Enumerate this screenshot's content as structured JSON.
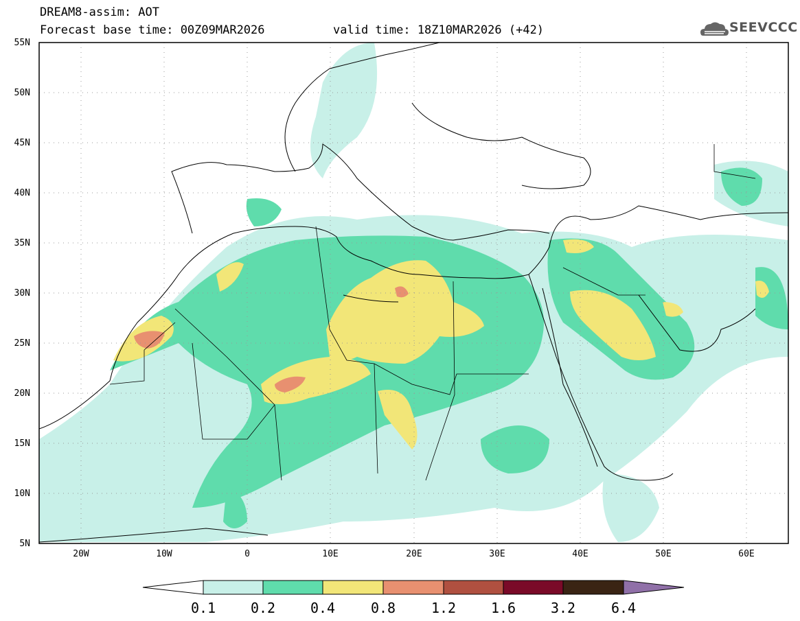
{
  "header": {
    "title": "DREAM8-assim: AOT",
    "base_time": "Forecast base time: 00Z09MAR2026",
    "valid_time": "valid time: 18Z10MAR2026 (+42)",
    "logo_text": "SEEVCCC",
    "logo_icon": "cloud-icon"
  },
  "map": {
    "projection": "lat-lon",
    "lon_range": [
      -25,
      65
    ],
    "lat_range": [
      5,
      55
    ],
    "gridlines": "dotted",
    "lat_labels": [
      "55N",
      "50N",
      "45N",
      "40N",
      "35N",
      "30N",
      "25N",
      "20N",
      "15N",
      "10N",
      "5N"
    ],
    "lon_labels": [
      "20W",
      "10W",
      "0",
      "10E",
      "20E",
      "30E",
      "40E",
      "50E",
      "60E"
    ]
  },
  "colorbar": {
    "levels": [
      "0.1",
      "0.2",
      "0.4",
      "0.8",
      "1.2",
      "1.6",
      "3.2",
      "6.4"
    ],
    "colors": [
      "#c8f0e8",
      "#5fdcac",
      "#f2e678",
      "#e89070",
      "#b05040",
      "#7a0a28",
      "#3a2414",
      "#9070a8"
    ],
    "below_color": "#ffffff"
  }
}
